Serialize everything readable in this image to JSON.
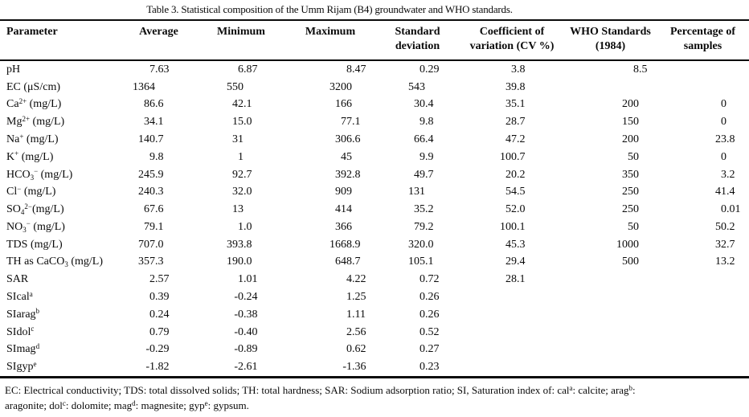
{
  "caption": "Table 3. Statistical composition of the Umm Rijam (B4) groundwater and WHO standards.",
  "table": {
    "columns": [
      {
        "key": "param",
        "lines": [
          "Parameter"
        ]
      },
      {
        "key": "avg",
        "lines": [
          "Average"
        ]
      },
      {
        "key": "min",
        "lines": [
          "Minimum"
        ]
      },
      {
        "key": "max",
        "lines": [
          "Maximum"
        ]
      },
      {
        "key": "std",
        "lines": [
          "Standard",
          "deviation"
        ]
      },
      {
        "key": "cv",
        "lines": [
          "Coefficient of",
          "variation (CV %)"
        ]
      },
      {
        "key": "who",
        "lines": [
          "WHO Standards",
          "(1984)"
        ]
      },
      {
        "key": "pct",
        "lines": [
          "Percentage of",
          "samples"
        ]
      }
    ],
    "rows": [
      {
        "param": [
          {
            "t": "pH"
          }
        ],
        "avg": "7.63",
        "min": "6.87",
        "max": "8.47",
        "std": "0.29",
        "cv": "3.8",
        "who": "8.5",
        "pct": ""
      },
      {
        "param": [
          {
            "t": "EC (μS/cm)"
          }
        ],
        "avg": "1364",
        "min": "550",
        "max": "3200",
        "std": "543",
        "cv": "39.8",
        "who": "",
        "pct": ""
      },
      {
        "param": [
          {
            "t": "Ca"
          },
          {
            "sup": "2+"
          },
          {
            "t": " (mg/L)"
          }
        ],
        "avg": "86.6",
        "min": "42.1",
        "max": "166",
        "std": "30.4",
        "cv": "35.1",
        "who": "200",
        "pct": "0"
      },
      {
        "param": [
          {
            "t": "Mg"
          },
          {
            "sup": "2+"
          },
          {
            "t": " (mg/L)"
          }
        ],
        "avg": "34.1",
        "min": "15.0",
        "max": "77.1",
        "std": "9.8",
        "cv": "28.7",
        "who": "150",
        "pct": "0"
      },
      {
        "param": [
          {
            "t": "Na"
          },
          {
            "sup": "+"
          },
          {
            "t": " (mg/L)"
          }
        ],
        "avg": "140.7",
        "min": "31",
        "max": "306.6",
        "std": "66.4",
        "cv": "47.2",
        "who": "200",
        "pct": "23.8"
      },
      {
        "param": [
          {
            "t": "K"
          },
          {
            "sup": "+"
          },
          {
            "t": " (mg/L)"
          }
        ],
        "avg": "9.8",
        "min": "1",
        "max": "45",
        "std": "9.9",
        "cv": "100.7",
        "who": "50",
        "pct": "0"
      },
      {
        "param": [
          {
            "t": "HCO"
          },
          {
            "sub": "3"
          },
          {
            "sup": "−"
          },
          {
            "t": " (mg/L)"
          }
        ],
        "avg": "245.9",
        "min": "92.7",
        "max": "392.8",
        "std": "49.7",
        "cv": "20.2",
        "who": "350",
        "pct": "3.2"
      },
      {
        "param": [
          {
            "t": "Cl"
          },
          {
            "sup": "−"
          },
          {
            "t": " (mg/L)"
          }
        ],
        "avg": "240.3",
        "min": "32.0",
        "max": "909",
        "std": "131",
        "cv": "54.5",
        "who": "250",
        "pct": "41.4"
      },
      {
        "param": [
          {
            "t": "SO"
          },
          {
            "sub": "4"
          },
          {
            "sup": "2−"
          },
          {
            "t": "(mg/L)"
          }
        ],
        "avg": "67.6",
        "min": "13",
        "max": "414",
        "std": "35.2",
        "cv": "52.0",
        "who": "250",
        "pct": "0.01"
      },
      {
        "param": [
          {
            "t": "NO"
          },
          {
            "sub": "3"
          },
          {
            "sup": "−"
          },
          {
            "t": " (mg/L)"
          }
        ],
        "avg": "79.1",
        "min": "1.0",
        "max": "366",
        "std": "79.2",
        "cv": "100.1",
        "who": "50",
        "pct": "50.2"
      },
      {
        "param": [
          {
            "t": "TDS (mg/L)"
          }
        ],
        "avg": "707.0",
        "min": "393.8",
        "max": "1668.9",
        "std": "320.0",
        "cv": "45.3",
        "who": "1000",
        "pct": "32.7"
      },
      {
        "param": [
          {
            "t": "TH as CaCO"
          },
          {
            "sub": "3"
          },
          {
            "t": " (mg/L)"
          }
        ],
        "avg": "357.3",
        "min": "190.0",
        "max": "648.7",
        "std": "105.1",
        "cv": "29.4",
        "who": "500",
        "pct": "13.2"
      },
      {
        "param": [
          {
            "t": "SAR"
          }
        ],
        "avg": "2.57",
        "min": "1.01",
        "max": "4.22",
        "std": "0.72",
        "cv": "28.1",
        "who": "",
        "pct": ""
      },
      {
        "param": [
          {
            "t": "SIcal"
          },
          {
            "sup": "a"
          }
        ],
        "avg": "0.39",
        "min": "-0.24",
        "max": "1.25",
        "std": "0.26",
        "cv": "",
        "who": "",
        "pct": ""
      },
      {
        "param": [
          {
            "t": "SIarag"
          },
          {
            "sup": "b"
          }
        ],
        "avg": "0.24",
        "min": "-0.38",
        "max": "1.11",
        "std": "0.26",
        "cv": "",
        "who": "",
        "pct": ""
      },
      {
        "param": [
          {
            "t": "SIdol"
          },
          {
            "sup": "c"
          }
        ],
        "avg": "0.79",
        "min": "-0.40",
        "max": "2.56",
        "std": "0.52",
        "cv": "",
        "who": "",
        "pct": ""
      },
      {
        "param": [
          {
            "t": "SImag"
          },
          {
            "sup": "d"
          }
        ],
        "avg": "-0.29",
        "min": "-0.89",
        "max": "0.62",
        "std": "0.27",
        "cv": "",
        "who": "",
        "pct": ""
      },
      {
        "param": [
          {
            "t": "SIgyp"
          },
          {
            "sup": "e"
          }
        ],
        "avg": "-1.82",
        "min": "-2.61",
        "max": "-1.36",
        "std": "0.23",
        "cv": "",
        "who": "",
        "pct": ""
      }
    ]
  },
  "footnote_lines": [
    [
      {
        "t": "EC: Electrical conductivity; TDS: total dissolved solids; TH: total hardness; SAR: Sodium adsorption ratio; SI, Saturation index of: cal"
      },
      {
        "sup": "a"
      },
      {
        "t": ": calcite; arag"
      },
      {
        "sup": "b"
      },
      {
        "t": ":"
      }
    ],
    [
      {
        "t": "aragonite; dol"
      },
      {
        "sup": "c"
      },
      {
        "t": ": dolomite; mag"
      },
      {
        "sup": "d"
      },
      {
        "t": ": magnesite; gyp"
      },
      {
        "sup": "e"
      },
      {
        "t": ": gypsum."
      }
    ]
  ]
}
